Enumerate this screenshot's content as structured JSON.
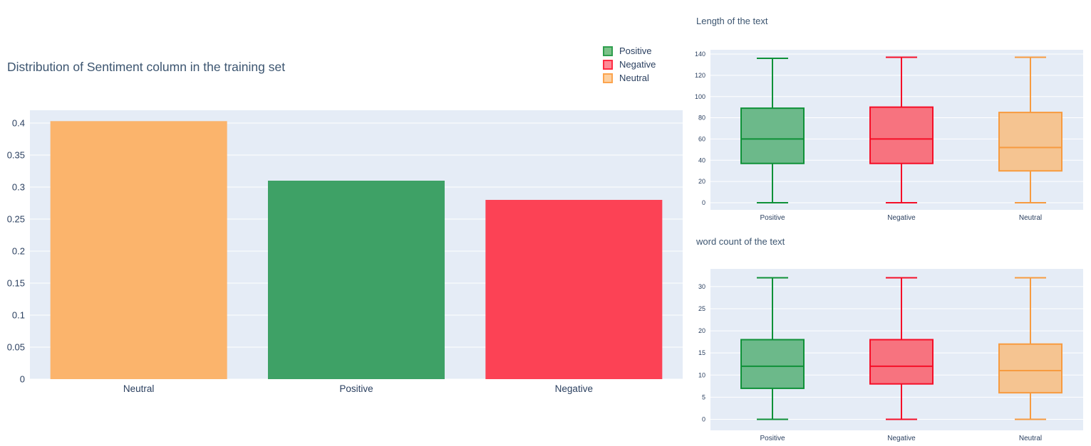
{
  "colors": {
    "plot_background": "#e5ecf6",
    "gridline": "#ffffff",
    "text": "#2a3f5f",
    "title_text": "#3c5570"
  },
  "left_figure": {
    "legend": [
      {
        "label": "Positive",
        "fill": "#7cc289",
        "border": "#2f9e4e"
      },
      {
        "label": "Negative",
        "fill": "#fc8b97",
        "border": "#ff2b43"
      },
      {
        "label": "Neutral",
        "fill": "#fdd0a0",
        "border": "#fca44e"
      }
    ]
  },
  "chart_data": [
    {
      "type": "bar",
      "title": "Distribution of Sentiment column in the training set",
      "categories": [
        "Neutral",
        "Positive",
        "Negative"
      ],
      "values": [
        0.403,
        0.31,
        0.28
      ],
      "bar_colors": [
        "#fbb46c",
        "#3ea166",
        "#fc4255"
      ],
      "xlabel": "",
      "ylabel": "",
      "ylim": [
        0,
        0.42
      ],
      "ytick_labels": [
        "0",
        "0.05",
        "0.1",
        "0.15",
        "0.2",
        "0.25",
        "0.3",
        "0.35",
        "0.4"
      ],
      "grid": true,
      "legend_position": "top-right",
      "legend_entries": [
        "Positive",
        "Negative",
        "Neutral"
      ]
    },
    {
      "type": "box",
      "title": "Length of the text",
      "categories": [
        "Positive",
        "Negative",
        "Neutral"
      ],
      "series": [
        {
          "name": "Positive",
          "min": 0,
          "q1": 37,
          "median": 60,
          "q3": 89,
          "max": 136,
          "line_color": "#0f9138",
          "fill_color": "#6cb98a"
        },
        {
          "name": "Negative",
          "min": 0,
          "q1": 37,
          "median": 60,
          "q3": 90,
          "max": 137,
          "line_color": "#f50f28",
          "fill_color": "#f7737f"
        },
        {
          "name": "Neutral",
          "min": 0,
          "q1": 30,
          "median": 52,
          "q3": 85,
          "max": 137,
          "line_color": "#f79b40",
          "fill_color": "#f5c491"
        }
      ],
      "ytick_labels": [
        "0",
        "20",
        "40",
        "60",
        "80",
        "100",
        "120",
        "140"
      ],
      "ylim": [
        -6.7,
        144
      ],
      "grid": true
    },
    {
      "type": "box",
      "title": "word count of the text",
      "categories": [
        "Positive",
        "Negative",
        "Neutral"
      ],
      "series": [
        {
          "name": "Positive",
          "min": 0,
          "q1": 7,
          "median": 12,
          "q3": 18,
          "max": 32,
          "line_color": "#0f9138",
          "fill_color": "#6cb98a"
        },
        {
          "name": "Negative",
          "min": 0,
          "q1": 8,
          "median": 12,
          "q3": 18,
          "max": 32,
          "line_color": "#f50f28",
          "fill_color": "#f7737f"
        },
        {
          "name": "Neutral",
          "min": 0,
          "q1": 6,
          "median": 11,
          "q3": 17,
          "max": 32,
          "line_color": "#f79b40",
          "fill_color": "#f5c491"
        }
      ],
      "ytick_labels": [
        "0",
        "5",
        "10",
        "15",
        "20",
        "25",
        "30"
      ],
      "ylim": [
        -2.5,
        34
      ],
      "grid": true
    }
  ]
}
